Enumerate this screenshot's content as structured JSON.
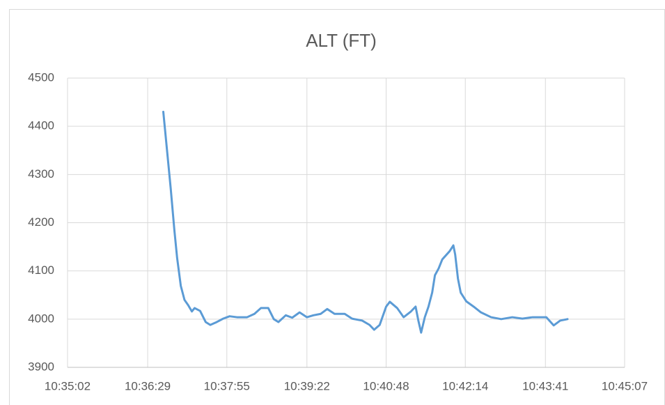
{
  "chart_data": {
    "type": "line",
    "title": "ALT (FT)",
    "x": [
      "10:36:46",
      "10:36:50",
      "10:36:54",
      "10:36:58",
      "10:37:01",
      "10:37:05",
      "10:37:09",
      "10:37:13",
      "10:37:17",
      "10:37:20",
      "10:37:26",
      "10:37:32",
      "10:37:37",
      "10:37:43",
      "10:37:51",
      "10:37:58",
      "10:38:06",
      "10:38:17",
      "10:38:25",
      "10:38:32",
      "10:38:40",
      "10:38:46",
      "10:38:51",
      "10:38:59",
      "10:39:06",
      "10:39:14",
      "10:39:22",
      "10:39:29",
      "10:39:37",
      "10:39:44",
      "10:39:52",
      "10:40:03",
      "10:40:11",
      "10:40:22",
      "10:40:30",
      "10:40:35",
      "10:40:41",
      "10:40:48",
      "10:40:52",
      "10:41:00",
      "10:41:07",
      "10:41:15",
      "10:41:20",
      "10:41:23",
      "10:41:26",
      "10:41:30",
      "10:41:34",
      "10:41:38",
      "10:41:41",
      "10:41:45",
      "10:41:49",
      "10:41:57",
      "10:42:01",
      "10:42:03",
      "10:42:06",
      "10:42:09",
      "10:42:15",
      "10:42:23",
      "10:42:31",
      "10:42:42",
      "10:42:53",
      "10:43:05",
      "10:43:16",
      "10:43:27",
      "10:43:42",
      "10:43:50",
      "10:43:57",
      "10:44:05"
    ],
    "series": [
      {
        "name": "ALT (FT)",
        "color": "#5b9bd5",
        "values": [
          4430,
          4351,
          4272,
          4185,
          4127,
          4069,
          4040,
          4029,
          4016,
          4023,
          4017,
          3994,
          3988,
          3993,
          4001,
          4006,
          4004,
          4004,
          4011,
          4023,
          4023,
          4000,
          3994,
          4008,
          4003,
          4014,
          4004,
          4008,
          4011,
          4021,
          4011,
          4011,
          4001,
          3997,
          3988,
          3978,
          3988,
          4026,
          4036,
          4023,
          4004,
          4016,
          4026,
          3997,
          3972,
          4004,
          4026,
          4055,
          4091,
          4105,
          4124,
          4141,
          4153,
          4134,
          4084,
          4055,
          4037,
          4026,
          4014,
          4004,
          4000,
          4004,
          4001,
          4004,
          4004,
          3987,
          3997,
          4000
        ]
      }
    ],
    "xlim": [
      "10:35:02",
      "10:45:07"
    ],
    "xticks": [
      "10:35:02",
      "10:36:29",
      "10:37:55",
      "10:39:22",
      "10:40:48",
      "10:42:14",
      "10:43:41",
      "10:45:07"
    ],
    "ylim": [
      3900,
      4500
    ],
    "yticks": [
      3900,
      4000,
      4100,
      4200,
      4300,
      4400,
      4500
    ],
    "grid": true
  }
}
